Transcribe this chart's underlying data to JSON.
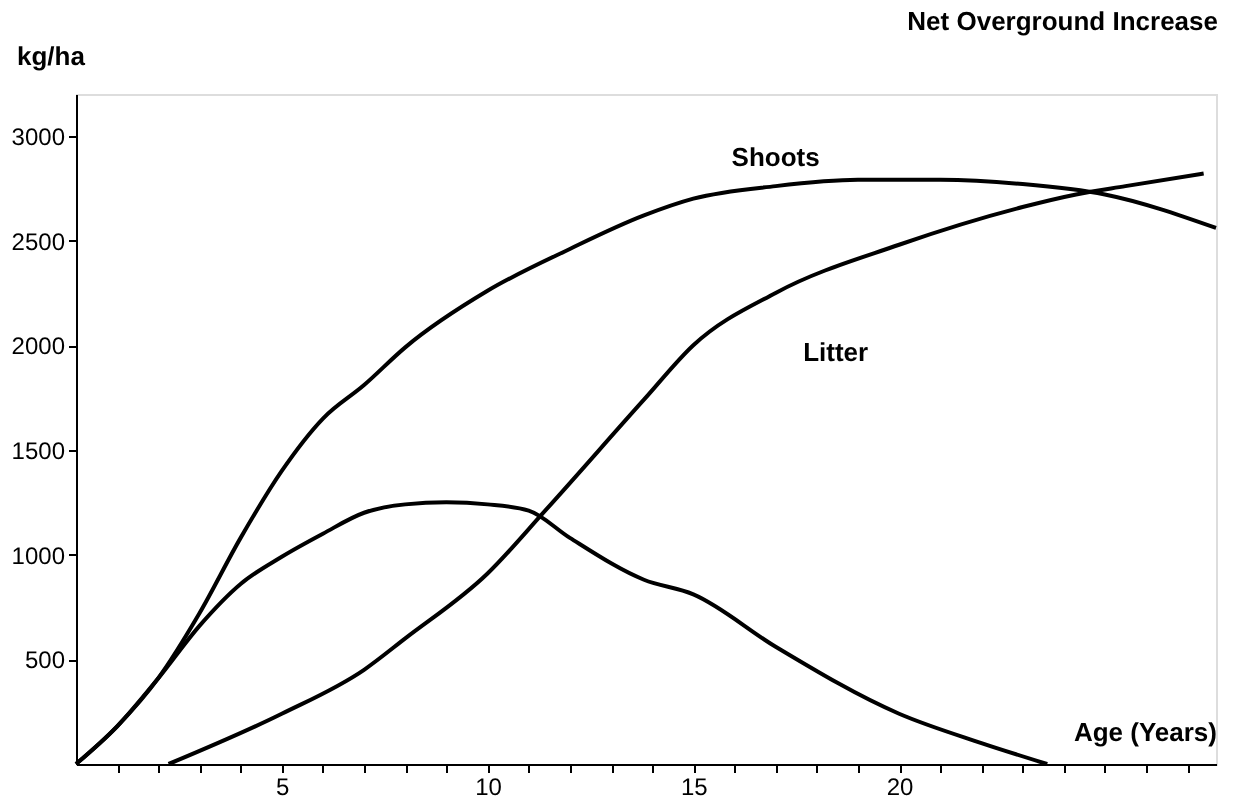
{
  "chart_data": {
    "type": "line",
    "title": "Net Overground Increase",
    "xlabel": "Age (Years)",
    "ylabel": "kg/ha",
    "xlim": [
      0,
      27.7
    ],
    "ylim": [
      0,
      3200
    ],
    "xticks": [
      {
        "value": 1,
        "label": null
      },
      {
        "value": 2,
        "label": null
      },
      {
        "value": 3,
        "label": null
      },
      {
        "value": 4,
        "label": null
      },
      5,
      {
        "value": 6,
        "label": null
      },
      {
        "value": 7,
        "label": null
      },
      {
        "value": 8,
        "label": null
      },
      {
        "value": 9,
        "label": null
      },
      10,
      {
        "value": 11,
        "label": null
      },
      {
        "value": 12,
        "label": null
      },
      {
        "value": 13,
        "label": null
      },
      {
        "value": 14,
        "label": null
      },
      15,
      {
        "value": 16,
        "label": null
      },
      {
        "value": 17,
        "label": null
      },
      {
        "value": 18,
        "label": null
      },
      {
        "value": 19,
        "label": null
      },
      20,
      {
        "value": 21,
        "label": null
      },
      {
        "value": 22,
        "label": null
      },
      {
        "value": 23,
        "label": null
      },
      {
        "value": 24,
        "label": null
      },
      {
        "value": 25,
        "label": null
      },
      {
        "value": 26,
        "label": null
      },
      {
        "value": 27,
        "label": null
      }
    ],
    "yticks": [
      500,
      1000,
      1500,
      2000,
      2500,
      3000
    ],
    "grid": false,
    "marker": "none",
    "line_style": "solid",
    "series": [
      {
        "name": "Shoots",
        "color": "#000000",
        "x": [
          0,
          1,
          2,
          3,
          4,
          5,
          6,
          7,
          8,
          10,
          12,
          13.8,
          15,
          17,
          19,
          21,
          23,
          25,
          27.7
        ],
        "values": [
          0,
          180,
          410,
          720,
          1080,
          1400,
          1650,
          1810,
          1990,
          2260,
          2460,
          2620,
          2700,
          2760,
          2790,
          2790,
          2770,
          2720,
          2560
        ]
      },
      {
        "name": "Litter",
        "color": "#000000",
        "x": [
          2.25,
          5,
          7,
          8,
          10,
          11.4,
          13.8,
          15,
          17,
          20,
          23,
          24.3,
          25.5,
          27.4
        ],
        "values": [
          0,
          240,
          450,
          600,
          910,
          1210,
          1740,
          2000,
          2250,
          2480,
          2660,
          2720,
          2760,
          2820
        ]
      },
      {
        "color": "#000000",
        "x": [
          0,
          1,
          2,
          3,
          4,
          5,
          6,
          7,
          8,
          9,
          10,
          11,
          12,
          13.8,
          15,
          17,
          20,
          22,
          23.6
        ],
        "values": [
          0,
          180,
          410,
          660,
          860,
          990,
          1100,
          1200,
          1240,
          1250,
          1240,
          1210,
          1080,
          880,
          810,
          560,
          240,
          100,
          0
        ]
      }
    ]
  }
}
